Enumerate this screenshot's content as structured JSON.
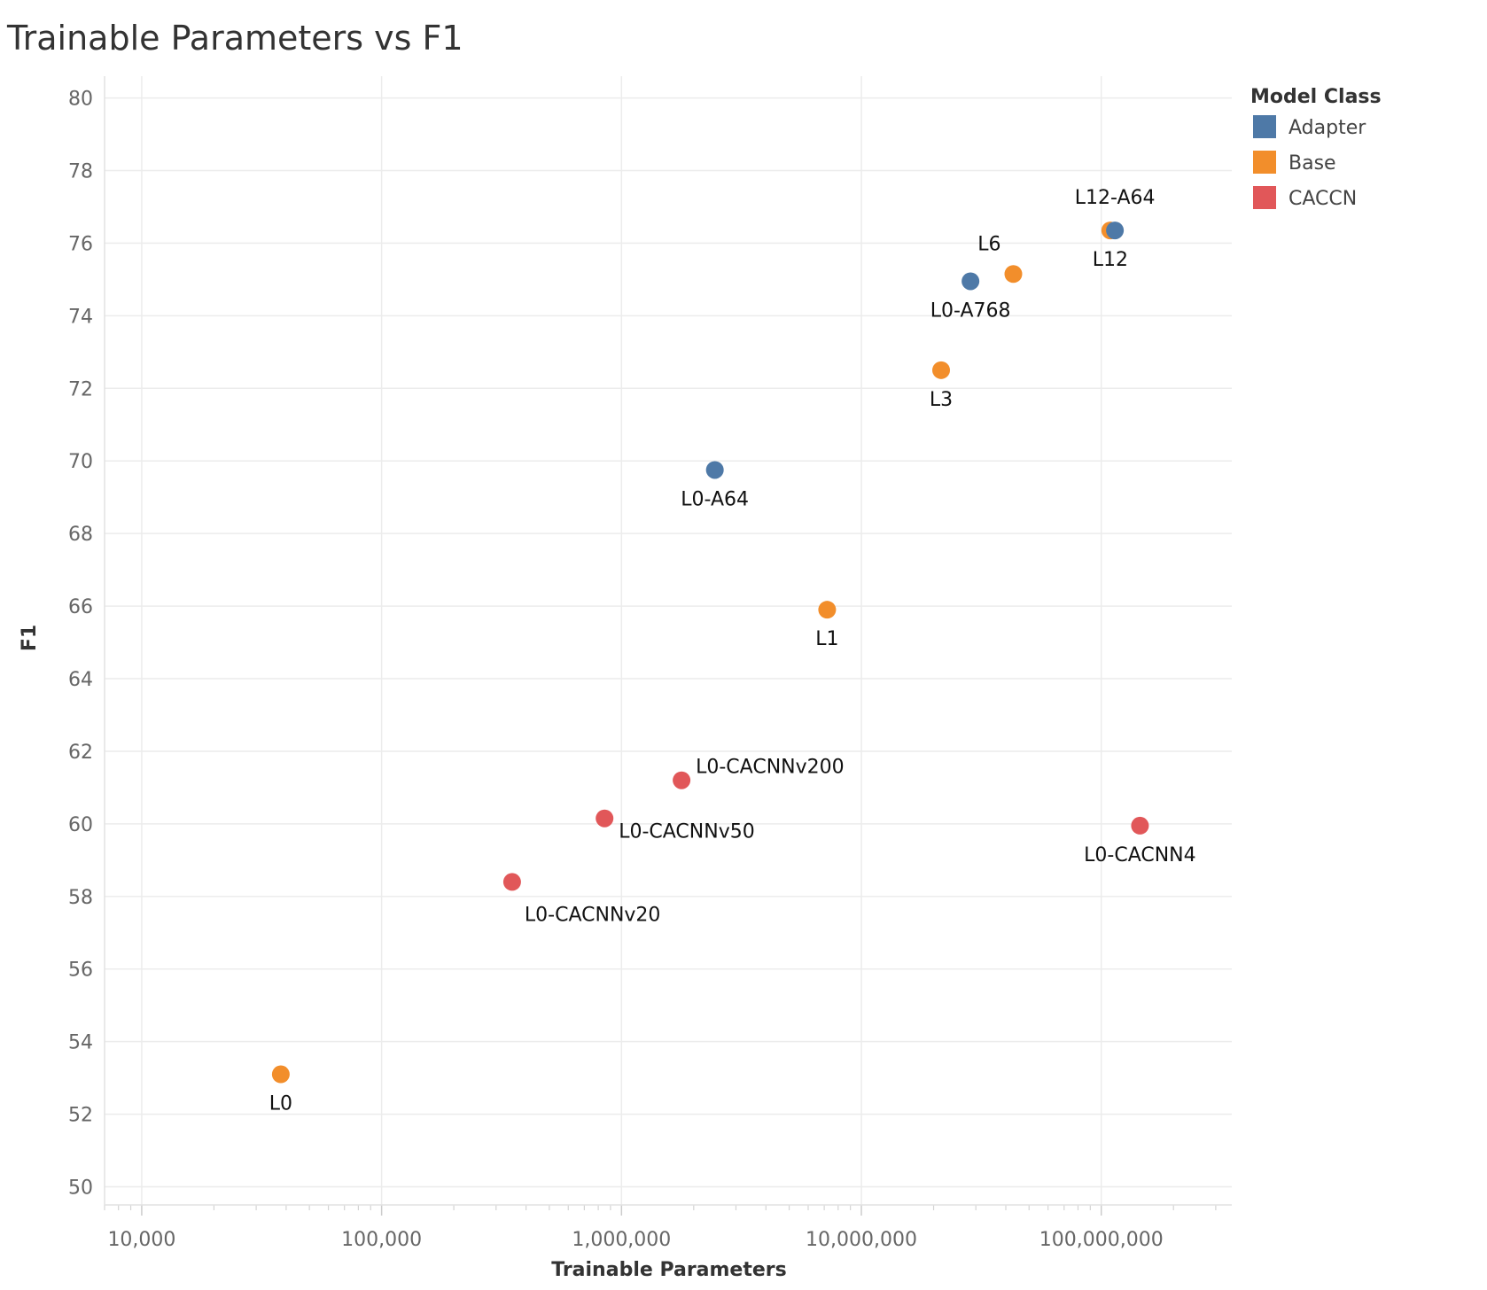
{
  "chart_data": {
    "type": "scatter",
    "title": "Trainable Parameters vs F1",
    "xlabel": "Trainable Parameters",
    "ylabel": "F1",
    "xscale": "log",
    "xlim": [
      7000,
      350000000
    ],
    "ylim": [
      49.5,
      80.6
    ],
    "xticks": [
      10000,
      100000,
      1000000,
      10000000,
      100000000
    ],
    "xtick_labels": [
      "10,000",
      "100,000",
      "1,000,000",
      "10,000,000",
      "100,000,000"
    ],
    "yticks": [
      50,
      52,
      54,
      56,
      58,
      60,
      62,
      64,
      66,
      68,
      70,
      72,
      74,
      76,
      78,
      80
    ],
    "ytick_labels": [
      "50",
      "52",
      "54",
      "56",
      "58",
      "60",
      "62",
      "64",
      "66",
      "68",
      "70",
      "72",
      "74",
      "76",
      "78",
      "80"
    ],
    "grid": true,
    "legend": {
      "title": "Model Class",
      "position": "top-right",
      "entries": [
        {
          "name": "Adapter",
          "color": "#4e79a7"
        },
        {
          "name": "Base",
          "color": "#f28e2b"
        },
        {
          "name": "CACCN",
          "color": "#e15759"
        }
      ]
    },
    "points": [
      {
        "label": "L0",
        "class": "Base",
        "x": 38000,
        "y": 53.1,
        "label_pos": "below"
      },
      {
        "label": "L1",
        "class": "Base",
        "x": 7200000,
        "y": 65.9,
        "label_pos": "below"
      },
      {
        "label": "L3",
        "class": "Base",
        "x": 21500000,
        "y": 72.5,
        "label_pos": "below"
      },
      {
        "label": "L6",
        "class": "Base",
        "x": 43000000,
        "y": 75.15,
        "label_pos": "above-left"
      },
      {
        "label": "L12",
        "class": "Base",
        "x": 109000000,
        "y": 76.35,
        "label_pos": "below"
      },
      {
        "label": "L0-A64",
        "class": "Adapter",
        "x": 2450000,
        "y": 69.75,
        "label_pos": "below"
      },
      {
        "label": "L0-A768",
        "class": "Adapter",
        "x": 28500000,
        "y": 74.95,
        "label_pos": "below"
      },
      {
        "label": "L12-A64",
        "class": "Adapter",
        "x": 114000000,
        "y": 76.35,
        "label_pos": "above"
      },
      {
        "label": "L0-CACNNv20",
        "class": "CACCN",
        "x": 350000,
        "y": 58.4,
        "label_pos": "below-right"
      },
      {
        "label": "L0-CACNNv50",
        "class": "CACCN",
        "x": 850000,
        "y": 60.15,
        "label_pos": "right-below"
      },
      {
        "label": "L0-CACNNv200",
        "class": "CACCN",
        "x": 1780000,
        "y": 61.2,
        "label_pos": "right-above"
      },
      {
        "label": "L0-CACNN4",
        "class": "CACCN",
        "x": 145000000,
        "y": 59.95,
        "label_pos": "below"
      }
    ]
  }
}
